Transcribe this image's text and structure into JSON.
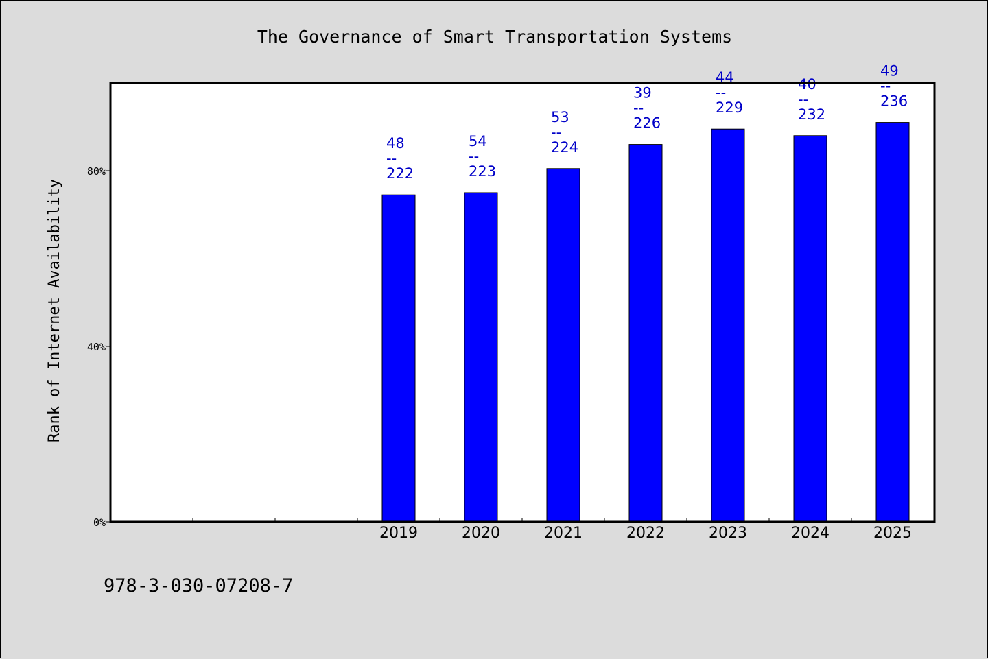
{
  "footer_text": "978-3-030-07208-7",
  "colors": {
    "bar": "#0000ff",
    "label": "#0000c8",
    "background": "#dcdcdc",
    "plot": "#ffffff"
  },
  "chart_data": {
    "type": "bar",
    "title": "The Governance of Smart Transportation Systems",
    "ylabel": "Rank of Internet Availability",
    "xlabel": "",
    "ylim": [
      0,
      100
    ],
    "yticks": [
      0,
      40,
      80
    ],
    "ytick_labels": [
      "0%",
      "40%",
      "80%"
    ],
    "unlabeled_slots": 3,
    "categories": [
      "2019",
      "2020",
      "2021",
      "2022",
      "2023",
      "2024",
      "2025"
    ],
    "values": [
      74.5,
      75,
      80.5,
      86,
      89.5,
      88,
      91
    ],
    "data_labels": [
      {
        "top": "48",
        "sep": "--",
        "bottom": "222"
      },
      {
        "top": "54",
        "sep": "--",
        "bottom": "223"
      },
      {
        "top": "53",
        "sep": "--",
        "bottom": "224"
      },
      {
        "top": "39",
        "sep": "--",
        "bottom": "226"
      },
      {
        "top": "44",
        "sep": "--",
        "bottom": "229"
      },
      {
        "top": "40",
        "sep": "--",
        "bottom": "232"
      },
      {
        "top": "49",
        "sep": "--",
        "bottom": "236"
      }
    ],
    "grid": false,
    "legend": "none"
  }
}
